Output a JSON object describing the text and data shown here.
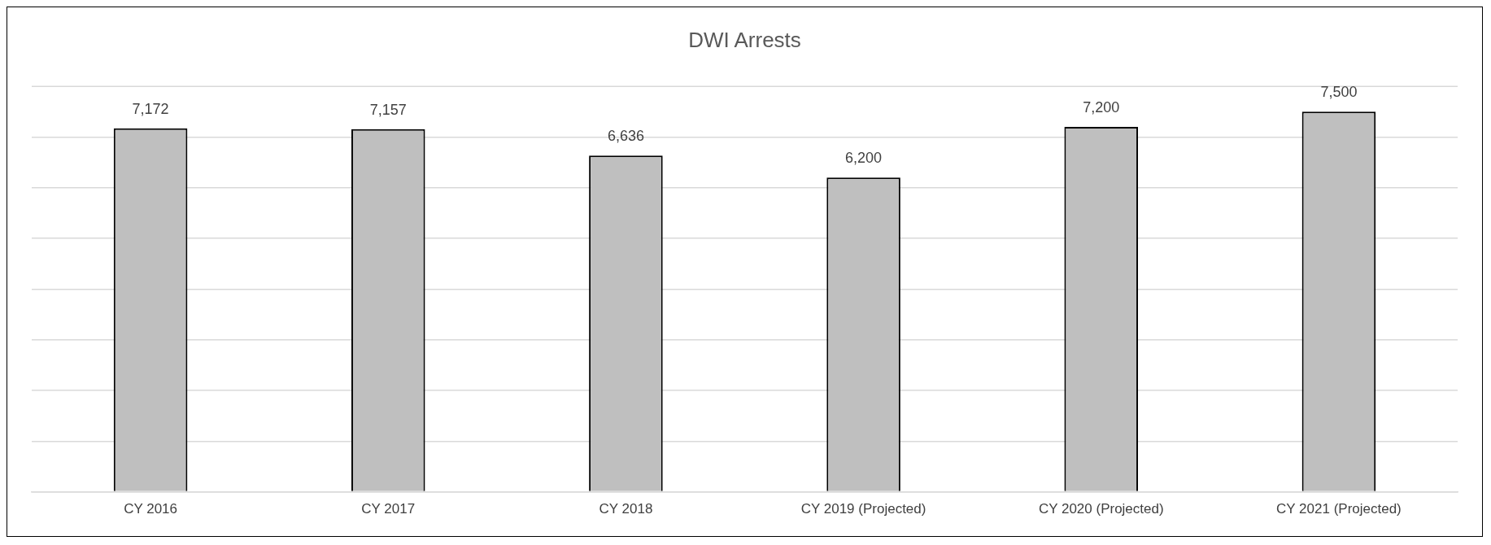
{
  "chart_data": {
    "type": "bar",
    "title": "DWI Arrests",
    "categories": [
      "CY 2016",
      "CY 2017",
      "CY 2018",
      "CY 2019 (Projected)",
      "CY 2020 (Projected)",
      "CY 2021 (Projected)"
    ],
    "values": [
      7172,
      7157,
      6636,
      6200,
      7200,
      7500
    ],
    "color": "#bfbfbf",
    "ylim": [
      0,
      8000
    ],
    "yticks": [
      {
        "value": 0,
        "label": null
      },
      {
        "value": 1000,
        "label": null
      },
      {
        "value": 2000,
        "label": null
      },
      {
        "value": 3000,
        "label": null
      },
      {
        "value": 4000,
        "label": null
      },
      {
        "value": 5000,
        "label": null
      },
      {
        "value": 6000,
        "label": null
      },
      {
        "value": 7000,
        "label": null
      }
    ],
    "value_labels": [
      "7,172",
      "7,157",
      "6,636",
      "6,200",
      "7,200",
      "7,500"
    ],
    "grid": "y",
    "tick_labels": "x",
    "legend": false
  }
}
